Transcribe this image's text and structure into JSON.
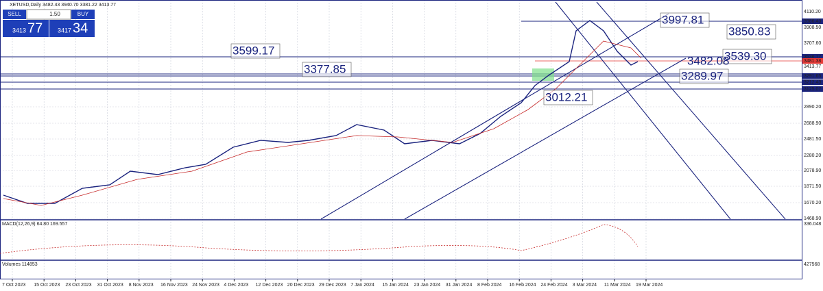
{
  "header": {
    "symbol": "XETUSD,Daily",
    "ohlc": "3482.43 3940.70 3381.22 3413.77"
  },
  "order_panel": {
    "sell_label": "SELL",
    "lot": "1.50",
    "buy_label": "BUY",
    "sell_price": "3413",
    "sell_pips": "77",
    "buy_price": "3417",
    "buy_pips": "34"
  },
  "price_axis": [
    "4110.20",
    "3986.43",
    "3908.50",
    "3707.60",
    "3536.77",
    "3481.38",
    "3413.77",
    "3291.65",
    "3212.43",
    "3125.07",
    "2890.20",
    "2688.90",
    "2481.50",
    "2280.20",
    "2078.90",
    "1871.50",
    "1670.20",
    "1468.90"
  ],
  "annotations": [
    "3997.81",
    "3850.83",
    "3599.17",
    "3539.30",
    "3482.08",
    "3377.85",
    "3289.97",
    "3012.21"
  ],
  "macd": {
    "label": "MACD(12,26,9) 64.80 169.557",
    "axis_top": "336.048"
  },
  "volumes": {
    "label": "Volumes 114853",
    "axis_top": "427568"
  },
  "date_axis": [
    "7 Oct 2023",
    "15 Oct 2023",
    "23 Oct 2023",
    "31 Oct 2023",
    "8 Nov 2023",
    "16 Nov 2023",
    "24 Nov 2023",
    "4 Dec 2023",
    "12 Dec 2023",
    "20 Dec 2023",
    "29 Dec 2023",
    "7 Jan 2024",
    "15 Jan 2024",
    "23 Jan 2024",
    "31 Jan 2024",
    "8 Feb 2024",
    "16 Feb 2024",
    "24 Feb 2024",
    "3 Mar 2024",
    "11 Mar 2024",
    "19 Mar 2024"
  ]
}
